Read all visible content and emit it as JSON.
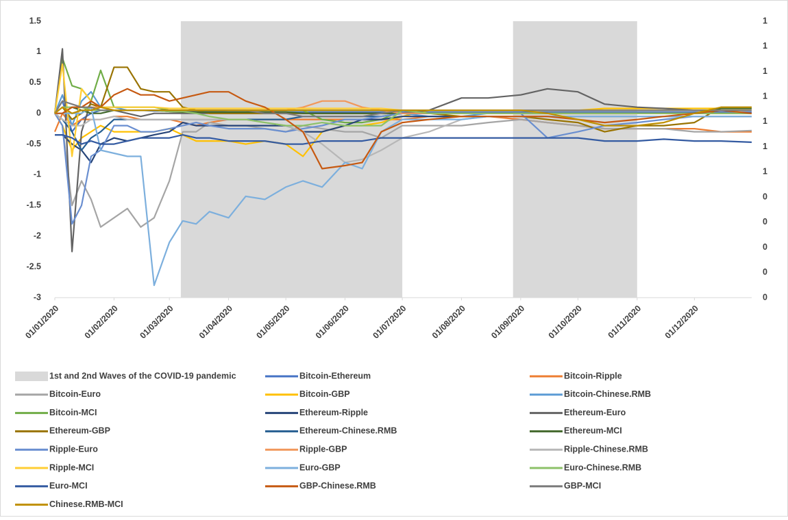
{
  "chart_data": {
    "type": "line",
    "x": [
      "01/01/2020",
      "05/01/2020",
      "10/01/2020",
      "15/01/2020",
      "20/01/2020",
      "25/01/2020",
      "01/02/2020",
      "08/02/2020",
      "15/02/2020",
      "22/02/2020",
      "01/03/2020",
      "08/03/2020",
      "15/03/2020",
      "22/03/2020",
      "01/04/2020",
      "10/04/2020",
      "20/04/2020",
      "01/05/2020",
      "10/05/2020",
      "20/05/2020",
      "01/06/2020",
      "10/06/2020",
      "20/06/2020",
      "01/07/2020",
      "15/07/2020",
      "01/08/2020",
      "15/08/2020",
      "01/09/2020",
      "15/09/2020",
      "01/10/2020",
      "15/10/2020",
      "01/11/2020",
      "15/11/2020",
      "01/12/2020",
      "15/12/2020",
      "31/12/2020"
    ],
    "xlim": [
      "01/01/2020",
      "31/12/2020"
    ],
    "xticks": [
      "01/01/2020",
      "01/02/2020",
      "01/03/2020",
      "01/04/2020",
      "01/05/2020",
      "01/06/2020",
      "01/07/2020",
      "01/08/2020",
      "01/09/2020",
      "01/10/2020",
      "01/11/2020",
      "01/12/2020"
    ],
    "ylim": [
      -3,
      1.5
    ],
    "yticks": [
      1.5,
      1,
      0.5,
      0,
      -0.5,
      -1,
      -1.5,
      -2,
      -2.5,
      -3
    ],
    "y2lim": [
      0,
      1.1
    ],
    "y2ticks": [
      {
        "value": 1.1,
        "label": "1"
      },
      {
        "value": 1.0,
        "label": "1"
      },
      {
        "value": 0.9,
        "label": "1"
      },
      {
        "value": 0.8,
        "label": "1"
      },
      {
        "value": 0.7,
        "label": "1"
      },
      {
        "value": 0.6,
        "label": "1"
      },
      {
        "value": 0.5,
        "label": "1"
      },
      {
        "value": 0.4,
        "label": "0"
      },
      {
        "value": 0.3,
        "label": "0"
      },
      {
        "value": 0.2,
        "label": "0"
      },
      {
        "value": 0.1,
        "label": "0"
      },
      {
        "value": 0,
        "label": "0"
      }
    ],
    "shaded": {
      "name": "1st and 2nd Waves of the COVID-19 pandemic",
      "color": "#d9d9d9",
      "regions": [
        {
          "start": "07/03/2020",
          "end": "01/07/2020"
        },
        {
          "start": "28/08/2020",
          "end": "01/11/2020"
        }
      ]
    },
    "series": [
      {
        "name": "Bitcoin-Ethereum",
        "color": "#4472c4",
        "values": [
          0,
          0.2,
          -0.3,
          -0.1,
          0,
          0.05,
          0.05,
          0.05,
          0.05,
          0.04,
          0.04,
          0.03,
          0.03,
          0.03,
          0.02,
          0.02,
          0.02,
          0.02,
          0.02,
          0.02,
          0.02,
          0.02,
          0.02,
          0.02,
          0.02,
          0.02,
          0.02,
          0.02,
          0.02,
          0.02,
          0.02,
          0.02,
          0.02,
          0.02,
          0.02,
          0.02
        ]
      },
      {
        "name": "Bitcoin-Ripple",
        "color": "#ed7d31",
        "values": [
          -0.3,
          0,
          -0.2,
          -0.1,
          -0.1,
          -0.1,
          -0.05,
          -0.05,
          -0.1,
          -0.1,
          -0.1,
          -0.15,
          -0.2,
          -0.15,
          -0.1,
          -0.1,
          -0.1,
          -0.1,
          -0.1,
          -0.1,
          -0.1,
          -0.1,
          -0.1,
          -0.1,
          -0.05,
          -0.05,
          -0.05,
          -0.1,
          -0.15,
          -0.2,
          -0.25,
          -0.25,
          -0.25,
          -0.25,
          -0.3,
          -0.3
        ]
      },
      {
        "name": "Bitcoin-Euro",
        "color": "#a5a5a5",
        "values": [
          0,
          -0.2,
          -1.5,
          -1.1,
          -1.4,
          -1.85,
          -1.7,
          -1.55,
          -1.85,
          -1.7,
          -1.1,
          -0.3,
          -0.3,
          -0.15,
          -0.2,
          -0.2,
          -0.25,
          -0.3,
          -0.2,
          -0.25,
          -0.3,
          -0.3,
          -0.4,
          -0.2,
          -0.2,
          -0.2,
          -0.15,
          -0.1,
          -0.15,
          -0.2,
          -0.25,
          -0.25,
          -0.25,
          -0.3,
          -0.3,
          -0.28
        ]
      },
      {
        "name": "Bitcoin-GBP",
        "color": "#ffc000",
        "values": [
          0,
          -0.2,
          -0.6,
          -0.4,
          -0.3,
          -0.2,
          -0.3,
          -0.3,
          -0.3,
          -0.3,
          -0.25,
          -0.35,
          -0.45,
          -0.45,
          -0.45,
          -0.5,
          -0.45,
          -0.5,
          -0.7,
          -0.3,
          -0.2,
          -0.2,
          -0.15,
          -0.05,
          0.05,
          0.05,
          0.05,
          0.05,
          0.05,
          0.05,
          0.08,
          0.08,
          0.08,
          0.08,
          0.08,
          0.08
        ]
      },
      {
        "name": "Bitcoin-Chinese.RMB",
        "color": "#5b9bd5",
        "values": [
          0,
          0.3,
          -0.2,
          0.2,
          0.35,
          0.1,
          0.1,
          0.05,
          0.05,
          0.05,
          0.05,
          0.05,
          0.05,
          0.05,
          0.05,
          0.05,
          0.05,
          0.05,
          0.05,
          0.05,
          0.05,
          0.05,
          0.05,
          0,
          -0.05,
          -0.05,
          0,
          0,
          0,
          0,
          0,
          0,
          0,
          0,
          0,
          0
        ]
      },
      {
        "name": "Bitcoin-MCI",
        "color": "#70ad47",
        "values": [
          0,
          0.9,
          0.45,
          0.4,
          0.2,
          0.7,
          0.1,
          0.1,
          0.1,
          0.1,
          0.05,
          0.05,
          0.05,
          0.05,
          0.05,
          0.05,
          0.05,
          0.05,
          0.05,
          -0.1,
          -0.15,
          -0.15,
          -0.1,
          0.05,
          0,
          0,
          0,
          0,
          0,
          0,
          0,
          0,
          0,
          0,
          0,
          0
        ]
      },
      {
        "name": "Ethereum-Ripple",
        "color": "#264478",
        "values": [
          -0.35,
          -0.35,
          -0.5,
          -0.6,
          -0.8,
          -0.5,
          -0.4,
          -0.45,
          -0.4,
          -0.35,
          -0.3,
          -0.15,
          -0.2,
          -0.2,
          -0.2,
          -0.2,
          -0.2,
          -0.2,
          -0.3,
          -0.3,
          -0.2,
          -0.1,
          -0.1,
          -0.05,
          -0.05,
          -0.05,
          -0.05,
          -0.05,
          -0.05,
          -0.05,
          -0.05,
          -0.05,
          -0.05,
          -0.05,
          -0.05,
          -0.05
        ]
      },
      {
        "name": "Ethereum-Euro",
        "color": "#636363",
        "values": [
          0,
          1.05,
          -2.25,
          -0.3,
          0.2,
          0.1,
          0.05,
          0,
          -0.05,
          0,
          0,
          0,
          0,
          0,
          0,
          0,
          0,
          0,
          0,
          0,
          0,
          0,
          0,
          0,
          0.05,
          0.25,
          0.25,
          0.3,
          0.4,
          0.35,
          0.15,
          0.1,
          0.08,
          0.05,
          0.05,
          0.05
        ]
      },
      {
        "name": "Ethereum-GBP",
        "color": "#997300",
        "values": [
          0,
          0.1,
          -0.1,
          0,
          0.15,
          0.1,
          0.75,
          0.75,
          0.4,
          0.35,
          0.35,
          0.1,
          0.05,
          0,
          0,
          0,
          0,
          0,
          0,
          0,
          0,
          0,
          0,
          0,
          0,
          -0.05,
          -0.05,
          -0.05,
          -0.1,
          -0.15,
          -0.3,
          -0.2,
          -0.2,
          -0.15,
          0.1,
          0.1
        ]
      },
      {
        "name": "Ethereum-Chinese.RMB",
        "color": "#255e91",
        "values": [
          0,
          -0.1,
          -0.3,
          -0.6,
          -0.4,
          -0.3,
          -0.1,
          -0.1,
          -0.1,
          -0.1,
          -0.1,
          -0.1,
          -0.1,
          -0.1,
          -0.1,
          -0.1,
          -0.1,
          -0.1,
          -0.05,
          -0.05,
          -0.05,
          -0.05,
          -0.05,
          0,
          0,
          0,
          0,
          0,
          0,
          0,
          0,
          0,
          0,
          0,
          0,
          0
        ]
      },
      {
        "name": "Ethereum-MCI",
        "color": "#43682b",
        "values": [
          0,
          0,
          0.1,
          0.05,
          0,
          0,
          0.05,
          0.05,
          0.05,
          0.05,
          0.03,
          0.02,
          0.02,
          0.02,
          0.02,
          0.02,
          0.02,
          0.02,
          0,
          0,
          0,
          0,
          0,
          0,
          0,
          0,
          0,
          0,
          0,
          0,
          0,
          0,
          0,
          0,
          0.08,
          0.08
        ]
      },
      {
        "name": "Ripple-Euro",
        "color": "#698ed0",
        "values": [
          0,
          -0.2,
          -1.8,
          -1.5,
          -0.7,
          -0.6,
          -0.2,
          -0.2,
          -0.3,
          -0.3,
          -0.25,
          -0.2,
          -0.15,
          -0.2,
          -0.25,
          -0.25,
          -0.25,
          -0.3,
          -0.25,
          -0.2,
          -0.1,
          -0.1,
          -0.05,
          0,
          0,
          0,
          0,
          0,
          -0.4,
          -0.3,
          -0.2,
          -0.15,
          -0.1,
          -0.05,
          -0.05,
          -0.05
        ]
      },
      {
        "name": "Ripple-GBP",
        "color": "#f1975a",
        "values": [
          0,
          0,
          0.1,
          0.1,
          0.1,
          0.1,
          0.05,
          0.05,
          0.05,
          0.05,
          0.05,
          0.05,
          0.05,
          0.05,
          0.05,
          0.05,
          0.05,
          0.05,
          0.1,
          0.2,
          0.2,
          0.1,
          0.05,
          0,
          0,
          0,
          0,
          0,
          0,
          0,
          0,
          0,
          0,
          0,
          0,
          0
        ]
      },
      {
        "name": "Ripple-Chinese.RMB",
        "color": "#b7b7b7",
        "values": [
          0,
          -0.1,
          -0.2,
          -0.2,
          -0.1,
          -0.1,
          -0.05,
          -0.1,
          -0.1,
          -0.1,
          -0.1,
          -0.1,
          -0.1,
          -0.1,
          -0.1,
          -0.1,
          -0.15,
          -0.2,
          -0.3,
          -0.5,
          -0.8,
          -0.75,
          -0.6,
          -0.4,
          -0.3,
          -0.1,
          -0.05,
          -0.05,
          -0.05,
          -0.05,
          -0.05,
          -0.05,
          -0.05,
          -0.05,
          -0.05,
          -0.05
        ]
      },
      {
        "name": "Ripple-MCI",
        "color": "#ffcd33",
        "values": [
          0,
          0.8,
          -0.7,
          0.4,
          0.2,
          0.1,
          0.1,
          0.1,
          0.1,
          0.1,
          0.08,
          0.08,
          0.08,
          0.08,
          0.08,
          0.08,
          0.08,
          0.08,
          0.08,
          0.08,
          0.08,
          0.08,
          0.08,
          0.05,
          0.05,
          0.05,
          0.05,
          0.05,
          0.05,
          0.05,
          0.05,
          0.05,
          0.05,
          0.05,
          0.05,
          0.05
        ]
      },
      {
        "name": "Euro-GBP",
        "color": "#7cafdd",
        "values": [
          0,
          0,
          0,
          0,
          0.1,
          -0.6,
          -0.65,
          -0.7,
          -0.7,
          -2.8,
          -2.1,
          -1.75,
          -1.8,
          -1.6,
          -1.7,
          -1.35,
          -1.4,
          -1.2,
          -1.1,
          -1.2,
          -0.8,
          -0.9,
          -0.3,
          -0.1,
          -0.1,
          -0.1,
          -0.05,
          -0.05,
          -0.05,
          -0.05,
          -0.05,
          -0.05,
          -0.05,
          -0.05,
          -0.05,
          -0.05
        ]
      },
      {
        "name": "Euro-Chinese.RMB",
        "color": "#8cc168",
        "values": [
          0,
          0.1,
          0.1,
          0.1,
          0.05,
          0.05,
          0.05,
          0.05,
          0.05,
          0.05,
          0.03,
          0.03,
          0,
          -0.05,
          -0.1,
          -0.1,
          -0.15,
          -0.2,
          -0.2,
          -0.15,
          -0.2,
          -0.2,
          -0.2,
          0.05,
          0,
          0,
          0,
          0,
          0,
          0,
          0,
          0,
          0,
          0,
          0,
          0
        ]
      },
      {
        "name": "Euro-MCI",
        "color": "#335aa1",
        "values": [
          -0.35,
          -0.35,
          -0.4,
          -0.5,
          -0.45,
          -0.5,
          -0.5,
          -0.45,
          -0.4,
          -0.4,
          -0.4,
          -0.35,
          -0.4,
          -0.4,
          -0.45,
          -0.45,
          -0.45,
          -0.5,
          -0.5,
          -0.45,
          -0.45,
          -0.45,
          -0.4,
          -0.4,
          -0.4,
          -0.4,
          -0.4,
          -0.4,
          -0.4,
          -0.4,
          -0.45,
          -0.45,
          -0.42,
          -0.45,
          -0.45,
          -0.47
        ]
      },
      {
        "name": "GBP-Chinese.RMB",
        "color": "#c65911",
        "values": [
          0,
          0,
          0.1,
          0.1,
          0.2,
          0.1,
          0.3,
          0.4,
          0.3,
          0.3,
          0.2,
          0.25,
          0.3,
          0.35,
          0.35,
          0.2,
          0.1,
          -0.1,
          -0.3,
          -0.9,
          -0.85,
          -0.8,
          -0.3,
          -0.15,
          -0.1,
          -0.05,
          -0.05,
          -0.05,
          -0.05,
          -0.1,
          -0.15,
          -0.1,
          -0.05,
          0,
          0.05,
          0
        ]
      },
      {
        "name": "GBP-MCI",
        "color": "#7b7b7b",
        "values": [
          0,
          0.2,
          0.15,
          0.1,
          0.1,
          0.05,
          0.05,
          0.05,
          0.05,
          0.05,
          0.05,
          0.05,
          0.05,
          0.05,
          0.05,
          0.05,
          0,
          0,
          -0.05,
          -0.05,
          -0.05,
          -0.05,
          0,
          0.05,
          0.05,
          0.05,
          0.05,
          0.05,
          0.05,
          0.05,
          0.05,
          0.05,
          0.05,
          0.05,
          0.05,
          0.05
        ]
      },
      {
        "name": "Chinese.RMB-MCI",
        "color": "#bf8f00",
        "values": [
          0,
          0.1,
          0,
          0.05,
          0.05,
          0.1,
          0.05,
          0.05,
          0.05,
          0.05,
          0.05,
          0.05,
          0.05,
          0.05,
          0.05,
          0.05,
          0.05,
          0.05,
          0.05,
          0.05,
          0.05,
          0.05,
          0.05,
          0.05,
          0.05,
          0.05,
          0.05,
          0.05,
          0,
          -0.1,
          -0.2,
          -0.2,
          -0.15,
          0,
          0.1,
          0.1
        ]
      }
    ]
  }
}
